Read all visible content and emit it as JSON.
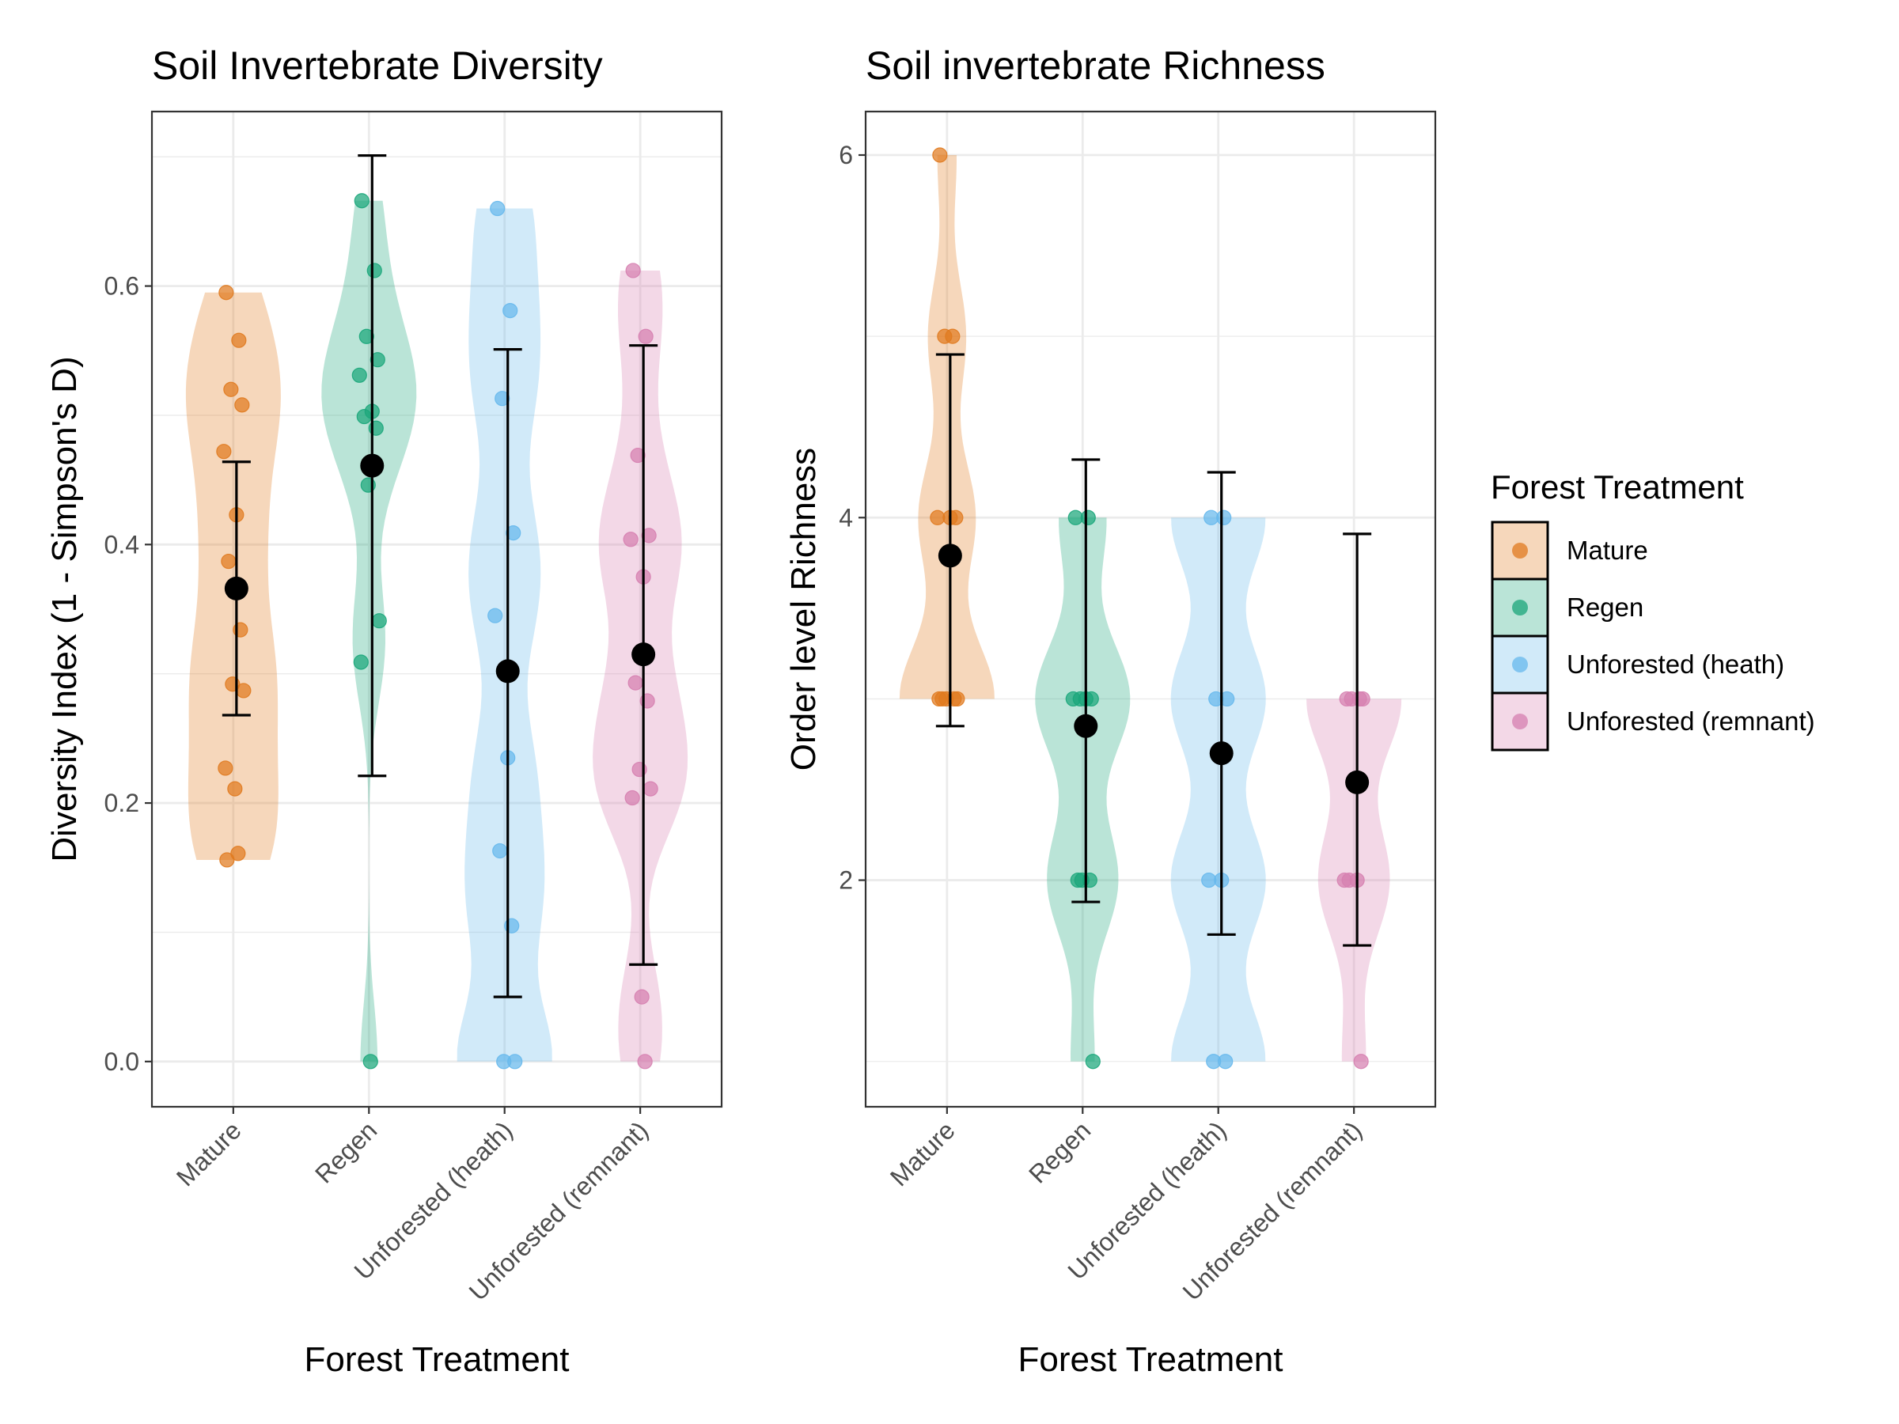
{
  "colors": {
    "Mature": "#E07A1F",
    "Regen": "#1AA67A",
    "Unforested (heath)": "#66B8EC",
    "Unforested (remnant)": "#D67FB0",
    "grid": "#EBEBEB",
    "mean": "#000000"
  },
  "legend": {
    "title": "Forest Treatment",
    "items": [
      "Mature",
      "Regen",
      "Unforested (heath)",
      "Unforested (remnant)"
    ]
  },
  "chart_data": [
    {
      "type": "violin",
      "title": "Soil Invertebrate Diversity",
      "xlabel": "Forest Treatment",
      "ylabel": "Diversity Index (1 - Simpson's D)",
      "categories": [
        "Mature",
        "Regen",
        "Unforested (heath)",
        "Unforested (remnant)"
      ],
      "ylim": [
        -0.035,
        0.735
      ],
      "yticks": [
        0.0,
        0.2,
        0.4,
        0.6
      ],
      "ytick_labels": [
        "0.0",
        "0.2",
        "0.4",
        "0.6"
      ],
      "grid": true,
      "points": [
        [
          0.595,
          0.558,
          0.52,
          0.508,
          0.472,
          0.423,
          0.387,
          0.334,
          0.292,
          0.287,
          0.227,
          0.211,
          0.161,
          0.156
        ],
        [
          0.666,
          0.612,
          0.561,
          0.543,
          0.531,
          0.503,
          0.499,
          0.49,
          0.446,
          0.341,
          0.309,
          0.0
        ],
        [
          0.66,
          0.581,
          0.513,
          0.409,
          0.345,
          0.235,
          0.163,
          0.105,
          0.0,
          0.0
        ],
        [
          0.612,
          0.561,
          0.469,
          0.407,
          0.404,
          0.375,
          0.293,
          0.279,
          0.226,
          0.211,
          0.204,
          0.05,
          0.0
        ]
      ],
      "mean": [
        0.366,
        0.461,
        0.302,
        0.315
      ],
      "err_low": [
        0.268,
        0.221,
        0.05,
        0.075
      ],
      "err_high": [
        0.464,
        0.701,
        0.551,
        0.554
      ]
    },
    {
      "type": "violin",
      "title": "Soil invertebrate Richness",
      "xlabel": "Forest Treatment",
      "ylabel": "Order level Richness",
      "categories": [
        "Mature",
        "Regen",
        "Unforested (heath)",
        "Unforested (remnant)"
      ],
      "ylim": [
        0.75,
        6.24
      ],
      "yticks": [
        2,
        4,
        6
      ],
      "ytick_labels": [
        "2",
        "4",
        "6"
      ],
      "grid": true,
      "points": [
        [
          6,
          5,
          5,
          4,
          4,
          4,
          3,
          3,
          3,
          3,
          3
        ],
        [
          4,
          4,
          3,
          3,
          3,
          3,
          2,
          2,
          2,
          1
        ],
        [
          4,
          4,
          3,
          3,
          2,
          2,
          1,
          1
        ],
        [
          3,
          3,
          3,
          3,
          2,
          2,
          2,
          1
        ]
      ],
      "mean": [
        3.79,
        2.85,
        2.7,
        2.54
      ],
      "err_low": [
        2.85,
        1.88,
        1.7,
        1.64
      ],
      "err_high": [
        4.9,
        4.32,
        4.25,
        3.91
      ]
    }
  ]
}
